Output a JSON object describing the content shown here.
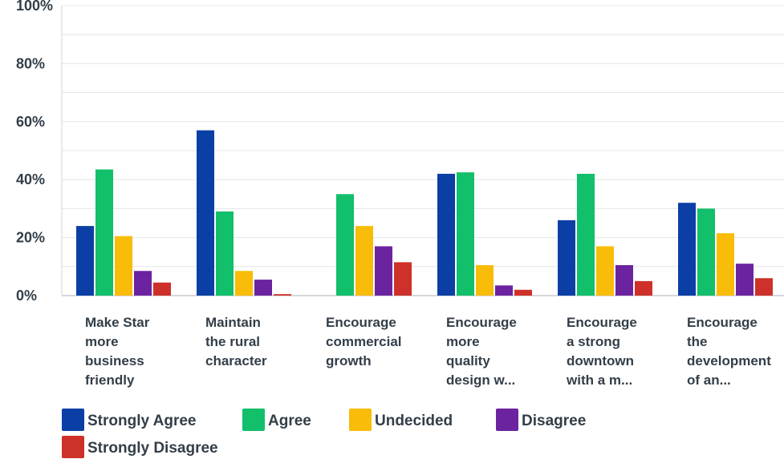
{
  "chart_data": {
    "type": "bar",
    "title": "",
    "xlabel": "",
    "ylabel": "",
    "ylim": [
      0,
      100
    ],
    "y_ticks": [
      "0%",
      "20%",
      "40%",
      "60%",
      "80%",
      "100%"
    ],
    "grid": true,
    "legend_position": "bottom",
    "categories": [
      [
        "Make Star",
        "more",
        "business",
        "friendly"
      ],
      [
        "Maintain",
        "the rural",
        "character"
      ],
      [
        "Encourage",
        "commercial",
        "growth"
      ],
      [
        "Encourage",
        "more",
        "quality",
        "design w..."
      ],
      [
        "Encourage",
        "a strong",
        "downtown",
        "with a m..."
      ],
      [
        "Encourage",
        "the",
        "development",
        "of an..."
      ]
    ],
    "series": [
      {
        "name": "Strongly Agree",
        "color": "#0b3fa6",
        "values": [
          24,
          57,
          0,
          42,
          26,
          32
        ]
      },
      {
        "name": "Agree",
        "color": "#12bf6a",
        "values": [
          43.5,
          29,
          35,
          42.5,
          42,
          30
        ]
      },
      {
        "name": "Undecided",
        "color": "#f9bc09",
        "values": [
          20.5,
          8.5,
          24,
          10.5,
          17,
          21.5
        ]
      },
      {
        "name": "Disagree",
        "color": "#6c239f",
        "values": [
          8.5,
          5.5,
          17,
          3.5,
          10.5,
          11
        ]
      },
      {
        "name": "Strongly Disagree",
        "color": "#cd3129",
        "values": [
          4.5,
          0.5,
          11.5,
          2,
          5,
          6
        ]
      }
    ]
  }
}
